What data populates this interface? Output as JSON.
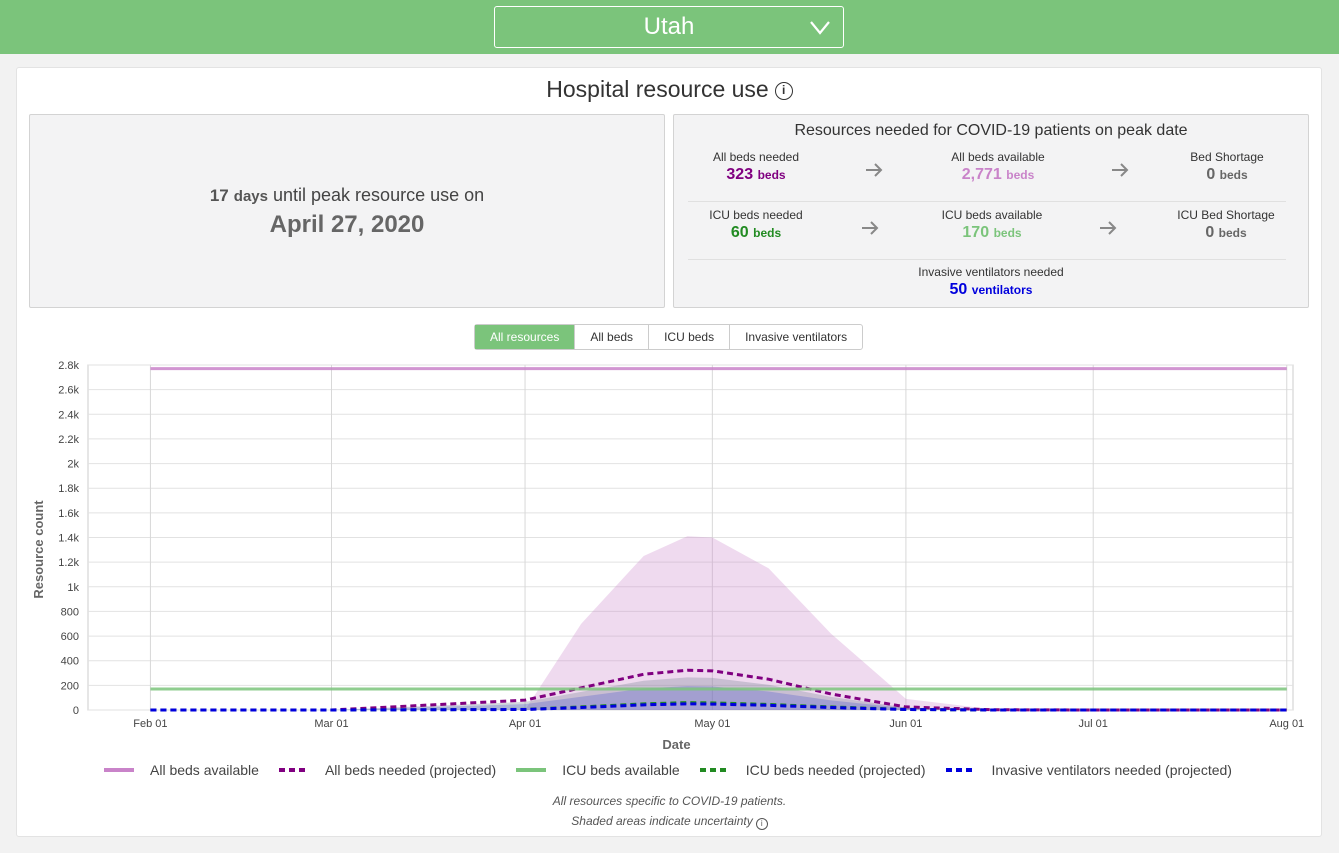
{
  "header": {
    "state": "Utah"
  },
  "title": "Hospital resource use",
  "peak": {
    "days": "17",
    "days_unit": "days",
    "text": "until peak resource use on",
    "date": "April 27, 2020"
  },
  "resources": {
    "title": "Resources needed for COVID-19 patients on peak date",
    "all_beds_needed": {
      "label": "All beds needed",
      "value": "323",
      "unit": "beds"
    },
    "all_beds_available": {
      "label": "All beds available",
      "value": "2,771",
      "unit": "beds"
    },
    "bed_shortage": {
      "label": "Bed Shortage",
      "value": "0",
      "unit": "beds"
    },
    "icu_beds_needed": {
      "label": "ICU beds needed",
      "value": "60",
      "unit": "beds"
    },
    "icu_beds_available": {
      "label": "ICU beds available",
      "value": "170",
      "unit": "beds"
    },
    "icu_bed_shortage": {
      "label": "ICU Bed Shortage",
      "value": "0",
      "unit": "beds"
    },
    "ventilators_needed": {
      "label": "Invasive ventilators needed",
      "value": "50",
      "unit": "ventilators"
    }
  },
  "tabs": [
    "All resources",
    "All beds",
    "ICU beds",
    "Invasive ventilators"
  ],
  "colors": {
    "header_green": "#7bc47b",
    "all_beds": "#c983c9",
    "all_beds_needed": "#800080",
    "icu_available": "#7bc47b",
    "icu_needed": "#228b22",
    "ventilators": "#0000dd"
  },
  "chart_data": {
    "type": "line",
    "xlabel": "Date",
    "ylabel": "Resource count",
    "ylim": [
      0,
      2800
    ],
    "yticks": [
      "0",
      "200",
      "400",
      "600",
      "800",
      "1k",
      "1.2k",
      "1.4k",
      "1.6k",
      "1.8k",
      "2k",
      "2.2k",
      "2.4k",
      "2.6k",
      "2.8k"
    ],
    "xticks": [
      "Feb 01",
      "Mar 01",
      "Apr 01",
      "May 01",
      "Jun 01",
      "Jul 01",
      "Aug 01"
    ],
    "x": [
      "2020-02-01",
      "2020-03-01",
      "2020-04-01",
      "2020-04-10",
      "2020-04-20",
      "2020-04-27",
      "2020-05-01",
      "2020-05-10",
      "2020-05-20",
      "2020-06-01",
      "2020-06-15",
      "2020-07-01",
      "2020-08-01"
    ],
    "legend_position": "bottom",
    "grid": true,
    "series": [
      {
        "name": "All beds available",
        "style": "solid",
        "values": [
          2771,
          2771,
          2771,
          2771,
          2771,
          2771,
          2771,
          2771,
          2771,
          2771,
          2771,
          2771,
          2771
        ]
      },
      {
        "name": "All beds needed (projected)",
        "style": "dashed",
        "values": [
          0,
          0,
          80,
          180,
          290,
          323,
          318,
          250,
          130,
          25,
          2,
          0,
          0
        ]
      },
      {
        "name": "ICU beds available",
        "style": "solid",
        "values": [
          170,
          170,
          170,
          170,
          170,
          170,
          170,
          170,
          170,
          170,
          170,
          170,
          170
        ]
      },
      {
        "name": "ICU beds needed (projected)",
        "style": "dashed",
        "values": [
          0,
          0,
          5,
          25,
          50,
          60,
          58,
          45,
          25,
          5,
          0,
          0,
          0
        ]
      },
      {
        "name": "Invasive ventilators needed (projected)",
        "style": "dashed",
        "values": [
          0,
          0,
          4,
          20,
          42,
          50,
          48,
          38,
          20,
          4,
          0,
          0,
          0
        ]
      }
    ],
    "uncertainty_all_beds_upper": [
      0,
      0,
      0,
      700,
      1250,
      1410,
      1400,
      1150,
      620,
      90,
      5,
      0,
      0
    ]
  },
  "notes": {
    "line1": "All resources specific to COVID-19 patients.",
    "line2": "Shaded areas indicate uncertainty"
  }
}
